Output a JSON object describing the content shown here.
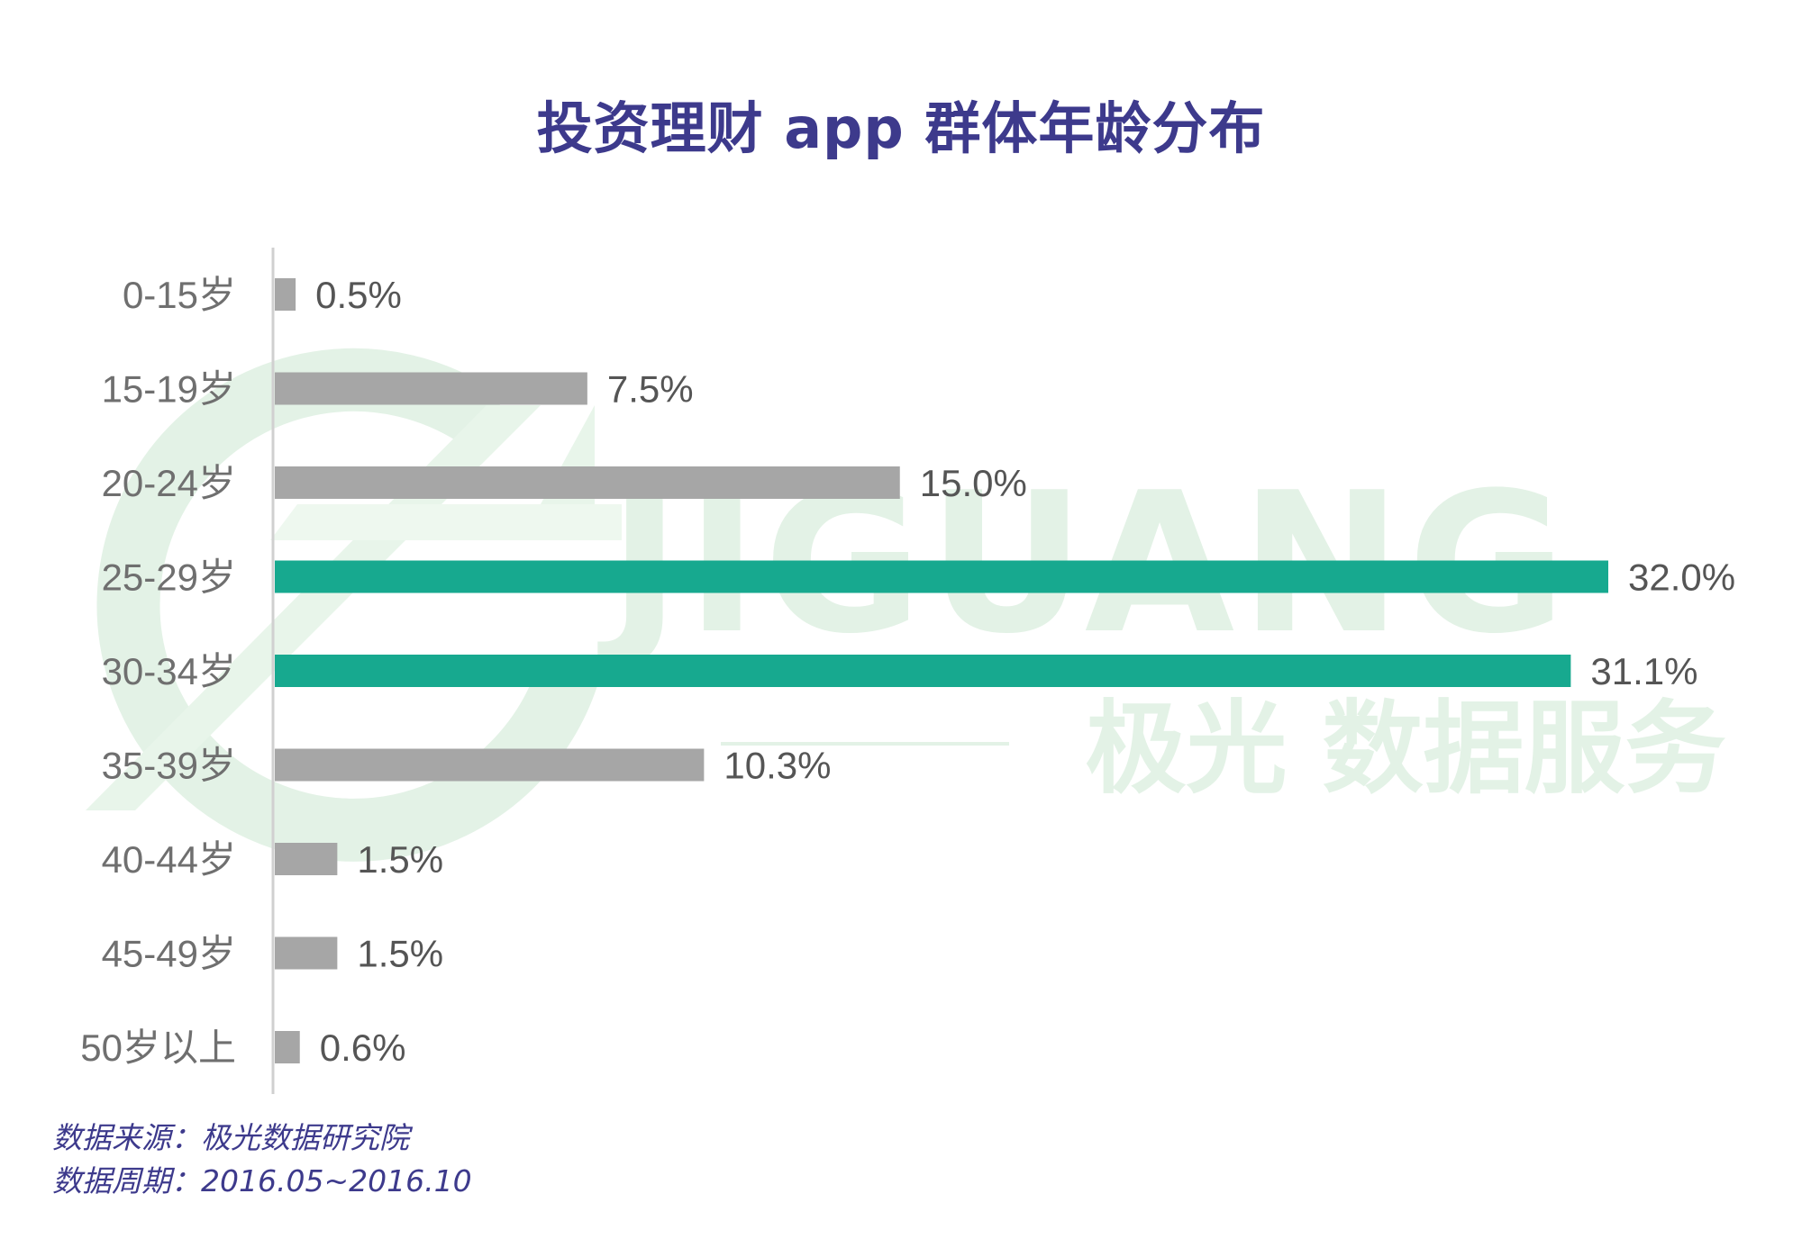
{
  "title": "投资理财 app 群体年龄分布",
  "chart_data": {
    "type": "bar",
    "orientation": "horizontal",
    "title": "投资理财 app 群体年龄分布",
    "xlabel": "",
    "ylabel": "",
    "categories": [
      "0-15岁",
      "15-19岁",
      "20-24岁",
      "25-29岁",
      "30-34岁",
      "35-39岁",
      "40-44岁",
      "45-49岁",
      "50岁以上"
    ],
    "values": [
      0.5,
      7.5,
      15.0,
      32.0,
      31.1,
      10.3,
      1.5,
      1.5,
      0.6
    ],
    "value_labels": [
      "0.5%",
      "7.5%",
      "15.0%",
      "32.0%",
      "31.1%",
      "10.3%",
      "1.5%",
      "1.5%",
      "0.6%"
    ],
    "unit": "%",
    "xlim": [
      0,
      32
    ],
    "grid": false,
    "colors": {
      "default": "#a6a6a6",
      "highlight": "#17a98f"
    },
    "highlighted_categories": [
      "25-29岁",
      "30-34岁"
    ]
  },
  "watermark": {
    "brand": "JIGUANG",
    "subtitle": "极光 数据服务",
    "color": "#e3f2e6"
  },
  "footer": {
    "source": "数据来源：极光数据研究院",
    "period": "数据周期：2016.05~2016.10"
  },
  "colors": {
    "title": "#3d3a8c",
    "axis": "#d0d0d0"
  }
}
